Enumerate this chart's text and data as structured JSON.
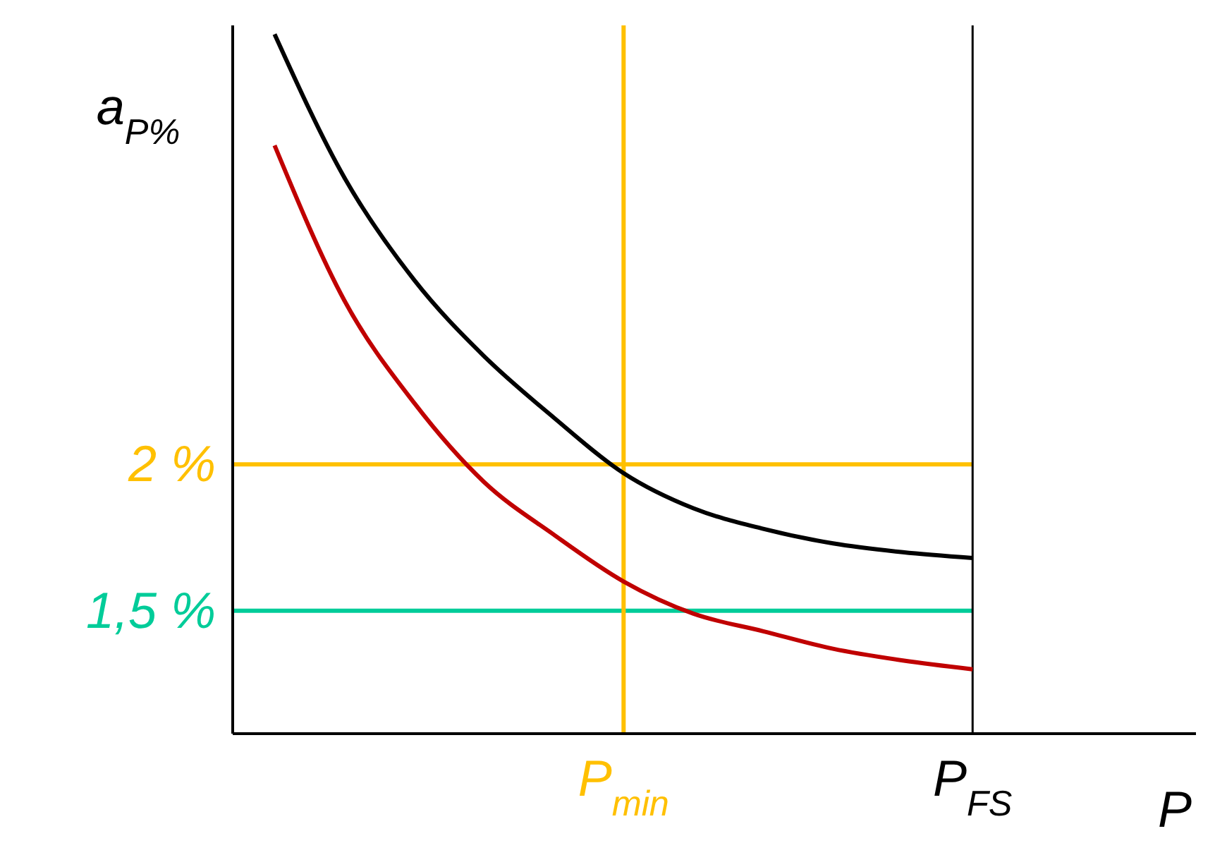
{
  "chart_data": {
    "type": "line",
    "xlabel": "P",
    "ylabel": "a$_{P%}$",
    "categories": [
      null,
      null,
      null,
      null,
      null,
      "P$_{min}$",
      null,
      null,
      null,
      null,
      "P$_{FS}$"
    ],
    "ylim": [
      1.08,
      3.5
    ],
    "yticks": [
      {
        "value": 1.5,
        "label": "1,5 %"
      },
      {
        "value": 2,
        "label": "2 %"
      }
    ],
    "series": [
      {
        "color": "#000000",
        "values": [
          3.47,
          2.98,
          2.63,
          2.37,
          2.16,
          1.97,
          1.85,
          1.78,
          1.73,
          1.7,
          1.68
        ]
      },
      {
        "color": "#c00000",
        "values": [
          3.09,
          2.56,
          2.21,
          1.94,
          1.76,
          1.6,
          1.49,
          1.43,
          1.37,
          1.33,
          1.3
        ]
      }
    ],
    "ref_lines": [
      {
        "axis": "y",
        "value": 2,
        "color": "#ffc000"
      },
      {
        "axis": "y",
        "value": 1.5,
        "color": "#00cc99"
      },
      {
        "axis": "x",
        "value": "P$_{min}$",
        "color": "#ffc000"
      },
      {
        "axis": "x",
        "value": "P$_{FS}$",
        "color": "#000000"
      }
    ]
  }
}
